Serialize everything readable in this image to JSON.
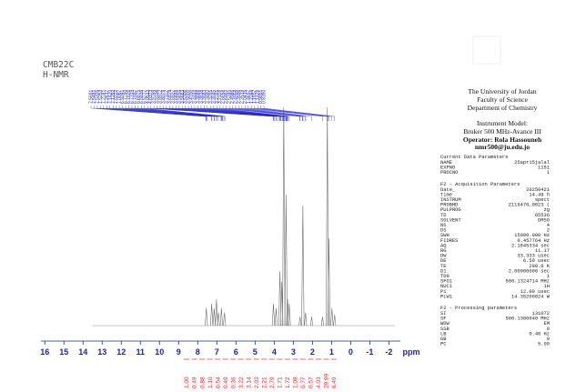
{
  "chart_data": {
    "type": "nmr",
    "title": [
      "CMB22C",
      "H-NMR"
    ],
    "x_label": "ppm",
    "xlim": [
      16.2,
      -2.6
    ],
    "xticks": [
      16,
      15,
      14,
      13,
      12,
      11,
      10,
      9,
      8,
      7,
      6,
      5,
      4,
      3,
      2,
      1,
      0,
      -1,
      -2
    ],
    "peak_labels": [
      "7.5691",
      "7.5481",
      "7.5335",
      "7.5253",
      "7.2781",
      "7.2617",
      "7.1420",
      "7.1292",
      "7.0222",
      "7.0087",
      "6.9241",
      "6.7790",
      "6.7626",
      "6.7319",
      "6.7037",
      "6.6875",
      "6.5936",
      "6.5777",
      "4.0513",
      "4.0373",
      "3.9789",
      "3.9104",
      "3.8972",
      "3.8079",
      "3.7112",
      "3.6879",
      "3.6837",
      "3.6488",
      "3.5854",
      "3.5683",
      "3.5306",
      "3.5000",
      "3.4700",
      "3.4444",
      "3.3888",
      "3.3818",
      "3.3683",
      "3.3480",
      "3.3265",
      "3.3045",
      "3.2765",
      "3.2114",
      "2.6658",
      "2.6462",
      "2.5345",
      "2.4986",
      "2.4958",
      "2.3596",
      "2.3519",
      "2.0415",
      "1.4657",
      "1.2244",
      "1.1657",
      "1.1428",
      "0.9851",
      "0.8390"
    ],
    "peaks": {
      "ppm": [
        7.55,
        7.27,
        7.14,
        7.02,
        6.92,
        6.76,
        6.6,
        4.04,
        3.9,
        3.7,
        3.6,
        3.5,
        3.38,
        3.3,
        3.21,
        2.65,
        2.5,
        2.36,
        2.04,
        1.47,
        1.22,
        1.14,
        0.98,
        0.84
      ],
      "intensity": [
        8,
        10,
        8,
        12,
        6,
        8,
        6,
        10,
        8,
        25,
        20,
        100,
        60,
        12,
        10,
        4,
        55,
        6,
        4,
        4,
        100,
        40,
        8,
        5
      ]
    },
    "integrals": {
      "values": [
        1,
        0.49,
        0.88,
        1.1,
        0.54,
        0.49,
        0.36,
        3.22,
        3.14,
        2.03,
        2.21,
        2.79,
        1.71,
        1.72,
        1.08,
        0.77,
        0.57,
        4.03,
        29.99,
        6.49
      ],
      "value_labels": [
        "1.00",
        "0.49",
        "0.88",
        "1.10",
        "0.54",
        "0.49",
        "0.36",
        "3.22",
        "3.14",
        "2.03",
        "2.21",
        "2.79",
        "1.71",
        "1.72",
        "1.08",
        "0.77",
        "0.57",
        "4.03",
        "29.99",
        "6.49"
      ]
    }
  },
  "header": {
    "institution": [
      "The University of Jordan",
      "Faculty of Science",
      "Department of Chemistry"
    ],
    "instrument": [
      "Instrument Model:",
      "Bruker 500 MHz-Avance III"
    ],
    "operator": [
      "Operator: Rola Hassouneh",
      "nmr500@ju.edu.jo"
    ]
  },
  "parameters": [
    {
      "title": "Current Data Parameters",
      "rows": [
        [
          "NAME",
          "25apr15jalal"
        ],
        [
          "EXPNO",
          "1151"
        ],
        [
          "PROCNO",
          "1"
        ]
      ]
    },
    {
      "title": "F2 - Acquisition Parameters",
      "rows": [
        [
          "Date_",
          "20250421"
        ],
        [
          "Time",
          "14.49 h"
        ],
        [
          "INSTRUM",
          "spect"
        ],
        [
          "PROBHD",
          "Z119470_0023 ("
        ],
        [
          "PULPROG",
          "zg"
        ],
        [
          "TD",
          "65536"
        ],
        [
          "SOLVENT",
          "DMSO"
        ],
        [
          "NS",
          "4"
        ],
        [
          "DS",
          "2"
        ],
        [
          "SWH",
          "15000.000 Hz"
        ],
        [
          "FIDRES",
          "0.457764 Hz"
        ],
        [
          "AQ",
          "2.1845334 sec"
        ],
        [
          "RG",
          "11.17"
        ],
        [
          "DW",
          "33.333 usec"
        ],
        [
          "DE",
          "6.50 usec"
        ],
        [
          "TE",
          "298.0 K"
        ],
        [
          "D1",
          "2.00000000 sec"
        ],
        [
          "TD0",
          "1"
        ],
        [
          "SFO1",
          "500.1324714 MHz"
        ],
        [
          "NUC1",
          "1H"
        ],
        [
          "P1",
          "12.00 usec"
        ],
        [
          "PLW1",
          "14.35200024 W"
        ]
      ]
    },
    {
      "title": "F2 - Processing parameters",
      "rows": [
        [
          "SI",
          "131072"
        ],
        [
          "SF",
          "500.1300040 MHz"
        ],
        [
          "WDW",
          "EM"
        ],
        [
          "SSB",
          "0"
        ],
        [
          "LB",
          "0.40 Hz"
        ],
        [
          "GB",
          "0"
        ],
        [
          "PC",
          "5.00"
        ]
      ]
    }
  ]
}
